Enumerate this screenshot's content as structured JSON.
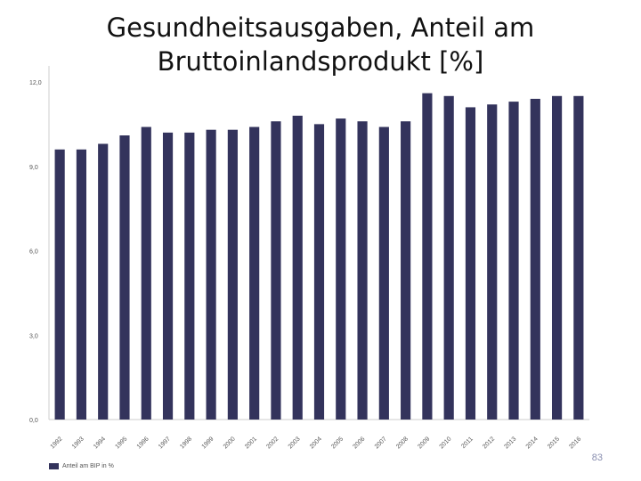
{
  "slide": {
    "page_number": "83"
  },
  "chart_data": {
    "type": "bar",
    "title": "Gesundheitsausgaben, Anteil am Bruttoinlandsprodukt [%]",
    "xlabel": "",
    "ylabel": "",
    "categories": [
      "1992",
      "1993",
      "1994",
      "1995",
      "1996",
      "1997",
      "1998",
      "1999",
      "2000",
      "2001",
      "2002",
      "2003",
      "2004",
      "2005",
      "2006",
      "2007",
      "2008",
      "2009",
      "2010",
      "2011",
      "2012",
      "2013",
      "2014",
      "2015",
      "2016"
    ],
    "series": [
      {
        "name": "Anteil am BIP in %",
        "values": [
          9.6,
          9.6,
          9.8,
          10.1,
          10.4,
          10.2,
          10.2,
          10.3,
          10.3,
          10.4,
          10.6,
          10.8,
          10.5,
          10.7,
          10.6,
          10.4,
          10.6,
          11.6,
          11.5,
          11.1,
          11.2,
          11.3,
          11.4,
          11.5,
          11.5
        ]
      }
    ],
    "yticks": [
      "0,0",
      "3,0",
      "6,0",
      "9,0",
      "12,0"
    ],
    "ylim": [
      0,
      12
    ],
    "grid": false,
    "legend": "bottom-left",
    "bar_color": "#33335c"
  }
}
